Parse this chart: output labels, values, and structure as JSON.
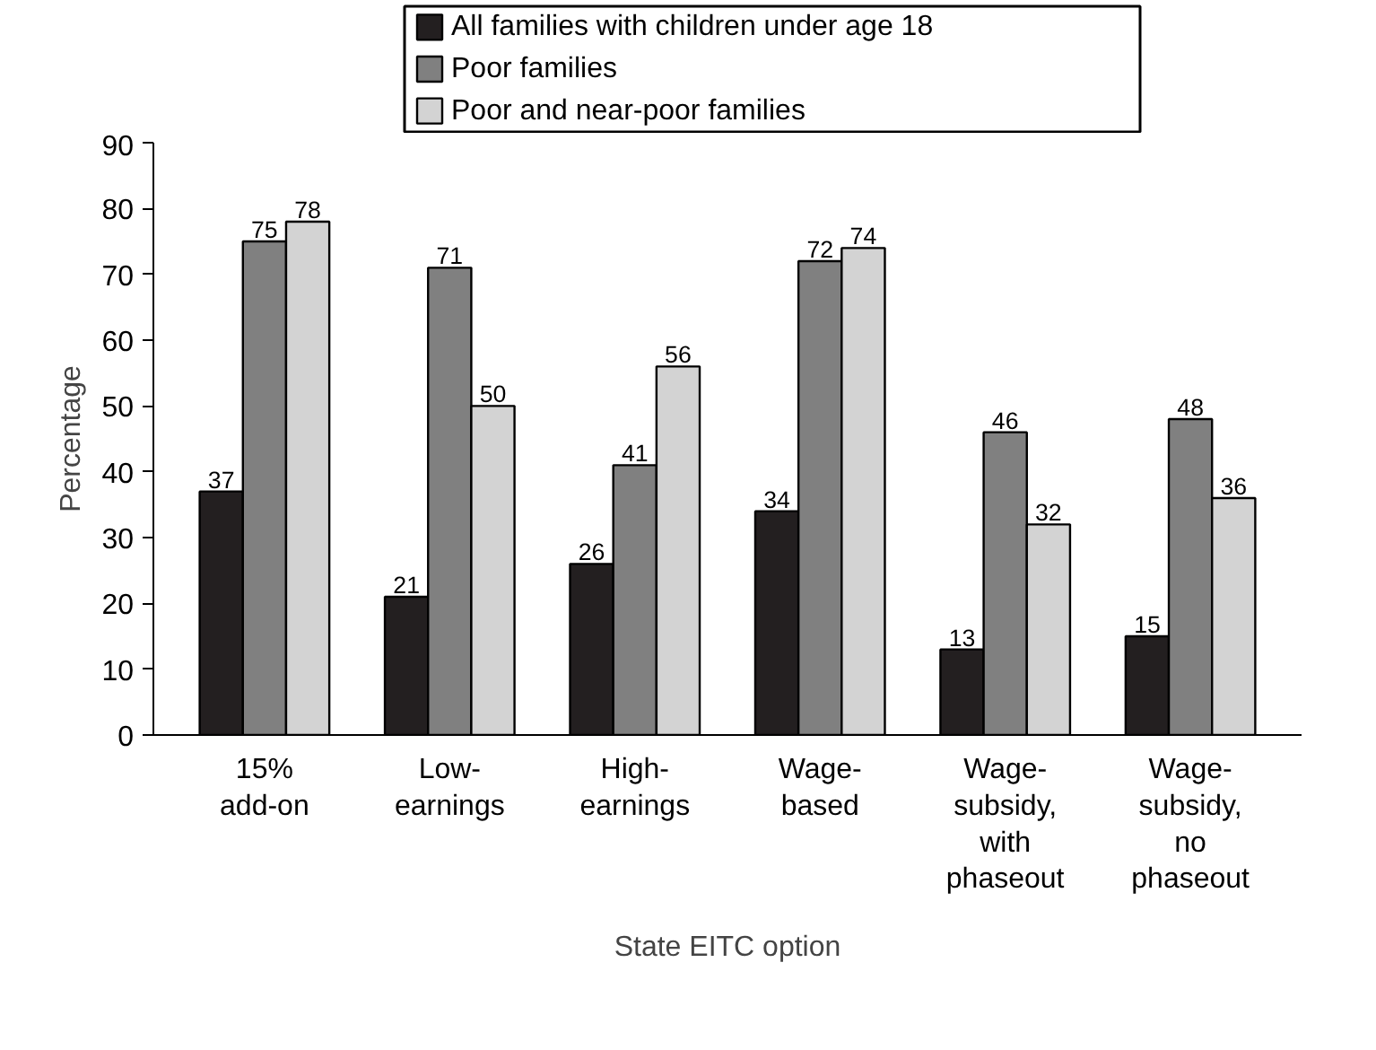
{
  "chart_data": {
    "type": "bar",
    "xlabel": "State EITC option",
    "ylabel": "Percentage",
    "categories": [
      "15%\nadd-on",
      "Low-\nearnings",
      "High-\nearnings",
      "Wage-\nbased",
      "Wage-\nsubsidy,\nwith\nphaseout",
      "Wage-\nsubsidy,\nno\nphaseout"
    ],
    "series": [
      {
        "name": "All families with children under age 18",
        "color": "#231f20",
        "values": [
          37,
          21,
          26,
          34,
          13,
          15
        ]
      },
      {
        "name": "Poor families",
        "color": "#808080",
        "values": [
          75,
          71,
          41,
          72,
          46,
          48
        ]
      },
      {
        "name": "Poor and near-poor families",
        "color": "#d3d3d3",
        "values": [
          78,
          50,
          56,
          74,
          32,
          36
        ]
      }
    ],
    "ylim": [
      0,
      90
    ],
    "yticks": [
      0,
      10,
      20,
      30,
      40,
      50,
      60,
      70,
      80,
      90
    ],
    "data_labels": true,
    "grid": false,
    "legend": "top"
  }
}
